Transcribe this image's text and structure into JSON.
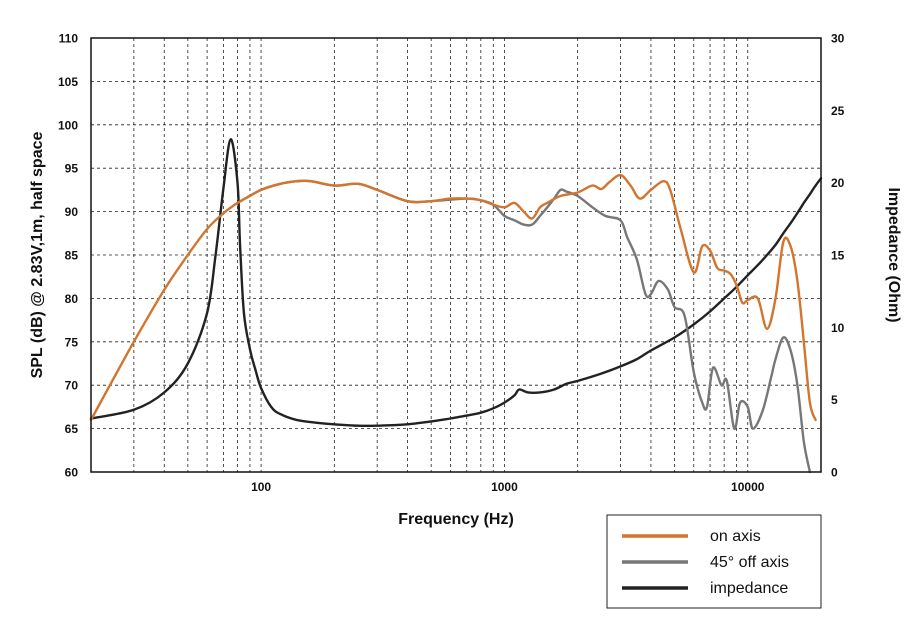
{
  "chart_data": {
    "type": "line",
    "xlabel": "Frequency (Hz)",
    "ylabel": "SPL (dB) @ 2.83V,1m, half space",
    "y2label": "Impedance (Ohm)",
    "x_scale": "log",
    "xlim": [
      20,
      20000
    ],
    "ylim": [
      60,
      110
    ],
    "y2lim": [
      0,
      30
    ],
    "grid": true,
    "legend_position": "bottom-right",
    "x_tick_labels": [
      "100",
      "1000",
      "10000"
    ],
    "y_tick_labels": [
      "60",
      "65",
      "70",
      "75",
      "80",
      "85",
      "90",
      "95",
      "100",
      "105",
      "110"
    ],
    "y2_tick_labels": [
      "0",
      "5",
      "10",
      "15",
      "20",
      "25",
      "30"
    ],
    "series": [
      {
        "name": "on axis",
        "color": "#d2752f",
        "axis": "left",
        "x": [
          20,
          30,
          40,
          50,
          60,
          70,
          80,
          90,
          100,
          120,
          140,
          160,
          200,
          250,
          300,
          400,
          500,
          600,
          700,
          800,
          900,
          1000,
          1100,
          1200,
          1300,
          1400,
          1500,
          1700,
          2000,
          2300,
          2500,
          2700,
          3000,
          3300,
          3600,
          4000,
          4500,
          4800,
          5300,
          6000,
          6500,
          7000,
          7500,
          8000,
          8500,
          9000,
          9500,
          10000,
          11000,
          12000,
          13000,
          14000,
          15000,
          16000,
          17000,
          18000,
          19000
        ],
        "y": [
          66,
          75,
          81,
          85,
          88,
          89.8,
          91,
          91.8,
          92.5,
          93.2,
          93.5,
          93.5,
          93,
          93.2,
          92.5,
          91.2,
          91.2,
          91.5,
          91.5,
          91.3,
          90.8,
          90.5,
          91,
          90,
          89.2,
          90.5,
          91,
          91.8,
          92.2,
          93,
          92.6,
          93.4,
          94.2,
          93,
          91.5,
          92.5,
          93.5,
          92.5,
          88,
          83,
          86,
          85.5,
          83.5,
          83.2,
          82.8,
          81.5,
          79.5,
          79.8,
          80,
          76.5,
          80,
          86.5,
          86,
          82,
          75,
          68,
          66
        ]
      },
      {
        "name": "45° off axis",
        "color": "#777777",
        "axis": "left",
        "x": [
          80,
          100,
          120,
          140,
          160,
          200,
          250,
          300,
          400,
          500,
          700,
          800,
          900,
          1000,
          1100,
          1200,
          1300,
          1400,
          1500,
          1600,
          1700,
          1800,
          2000,
          2300,
          2600,
          3000,
          3200,
          3500,
          3800,
          4000,
          4300,
          4700,
          5000,
          5500,
          6000,
          6500,
          6800,
          7200,
          7800,
          8200,
          8800,
          9300,
          10000,
          10500,
          11500,
          12500,
          13000,
          14000,
          15000,
          16000,
          17000,
          18000
        ],
        "y": [
          91,
          92.5,
          93.2,
          93.5,
          93.5,
          93,
          93.2,
          92.5,
          91.2,
          91.2,
          91.5,
          91.3,
          90.8,
          89.5,
          89,
          88.5,
          88.5,
          89.5,
          90.5,
          91.5,
          92.5,
          92.3,
          91.8,
          90.5,
          89.5,
          89,
          87,
          84.5,
          80.5,
          80.5,
          82,
          81,
          79,
          78,
          71.5,
          68,
          67.5,
          72,
          70,
          70.5,
          65,
          68,
          67.5,
          65,
          67,
          71,
          73,
          75.5,
          74,
          70,
          63.5,
          60
        ]
      },
      {
        "name": "impedance",
        "color": "#222222",
        "axis": "right",
        "x": [
          20,
          30,
          40,
          50,
          60,
          65,
          70,
          75,
          80,
          82,
          85,
          90,
          95,
          100,
          110,
          120,
          140,
          170,
          200,
          250,
          300,
          400,
          500,
          600,
          700,
          800,
          900,
          1000,
          1100,
          1150,
          1250,
          1400,
          1600,
          1800,
          2000,
          2500,
          3000,
          3500,
          4000,
          5000,
          6000,
          7000,
          8000,
          9000,
          10000,
          11000,
          12000,
          13000,
          14000,
          15000,
          16000,
          17000,
          18000,
          19000,
          20000
        ],
        "y": [
          3.7,
          4.3,
          5.5,
          7.5,
          11,
          15,
          19.6,
          23,
          20,
          15.6,
          11,
          8.5,
          7,
          5.8,
          4.5,
          4,
          3.6,
          3.4,
          3.3,
          3.2,
          3.2,
          3.3,
          3.5,
          3.7,
          3.9,
          4.1,
          4.4,
          4.8,
          5.3,
          5.7,
          5.5,
          5.5,
          5.7,
          6.1,
          6.3,
          6.8,
          7.3,
          7.8,
          8.4,
          9.3,
          10.2,
          11.1,
          12,
          12.8,
          13.6,
          14.3,
          15,
          15.7,
          16.5,
          17.2,
          17.9,
          18.6,
          19.2,
          19.8,
          20.3
        ]
      }
    ]
  }
}
